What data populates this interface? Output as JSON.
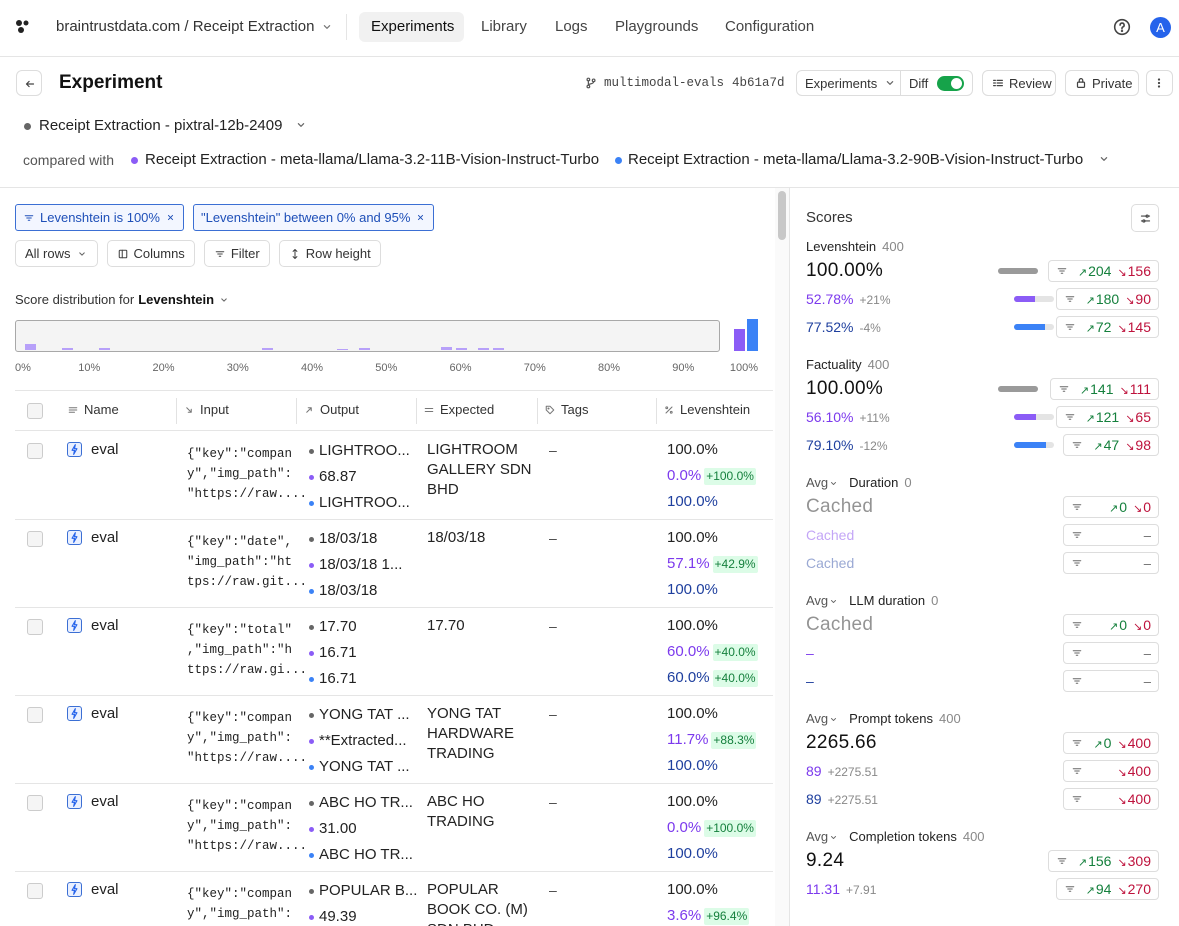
{
  "header": {
    "breadcrumb": "braintrustdata.com / Receipt Extraction",
    "nav": [
      "Experiments",
      "Library",
      "Logs",
      "Playgrounds",
      "Configuration"
    ],
    "avatar": "A"
  },
  "toolbar": {
    "title": "Experiment",
    "branch": "multimodal-evals",
    "commit": "4b61a7d",
    "buttons": [
      "Experiments",
      "Diff",
      "Review",
      "Private"
    ]
  },
  "experiment": "Receipt Extraction - pixtral-12b-2409",
  "compared_label": "compared with",
  "compared": [
    "Receipt Extraction - meta-llama/Llama-3.2-11B-Vision-Instruct-Turbo",
    "Receipt Extraction - meta-llama/Llama-3.2-90B-Vision-Instruct-Turbo"
  ],
  "filters": [
    "Levenshtein is 100%",
    "\"Levenshtein\" between 0% and 95%"
  ],
  "controls": [
    "All rows",
    "Columns",
    "Filter",
    "Row height"
  ],
  "distribution": {
    "label": "Score distribution for",
    "metric": "Levenshtein",
    "ticks": [
      "0%",
      "10%",
      "20%",
      "30%",
      "40%",
      "50%",
      "60%",
      "70%",
      "80%",
      "90%",
      "100%"
    ],
    "bars": {
      "x": [
        2,
        7,
        12,
        34,
        44,
        47,
        58,
        60,
        63,
        65
      ],
      "h": [
        6,
        2,
        2,
        2,
        1,
        2,
        3,
        2,
        2,
        2
      ]
    },
    "full": [
      22,
      32
    ]
  },
  "table": {
    "columns": [
      "Name",
      "Input",
      "Output",
      "Expected",
      "Tags",
      "Levenshtein"
    ],
    "rows": [
      {
        "name": "eval",
        "input": [
          "{\"key\":\"compan",
          "y\",\"img_path\":",
          "\"https://raw...."
        ],
        "output": [
          "LIGHTROO...",
          "68.87",
          "LIGHTROO..."
        ],
        "expected": "LIGHTROOM GALLERY SDN BHD",
        "tags": "–",
        "scores": [
          {
            "value": "100.0%"
          },
          {
            "value": "0.0%",
            "diff": "+100.0%"
          },
          {
            "value": "100.0%"
          }
        ]
      },
      {
        "name": "eval",
        "input": [
          "{\"key\":\"date\",",
          "\"img_path\":\"ht",
          "tps://raw.git..."
        ],
        "output": [
          "18/03/18",
          "18/03/18 1...",
          "18/03/18"
        ],
        "expected": "18/03/18",
        "tags": "–",
        "scores": [
          {
            "value": "100.0%"
          },
          {
            "value": "57.1%",
            "diff": "+42.9%"
          },
          {
            "value": "100.0%"
          }
        ]
      },
      {
        "name": "eval",
        "input": [
          "{\"key\":\"total\"",
          ",\"img_path\":\"h",
          "ttps://raw.gi..."
        ],
        "output": [
          "17.70",
          "16.71",
          "16.71"
        ],
        "expected": "17.70",
        "tags": "–",
        "scores": [
          {
            "value": "100.0%"
          },
          {
            "value": "60.0%",
            "diff": "+40.0%"
          },
          {
            "value": "60.0%",
            "diff": "+40.0%"
          }
        ]
      },
      {
        "name": "eval",
        "input": [
          "{\"key\":\"compan",
          "y\",\"img_path\":",
          "\"https://raw...."
        ],
        "output": [
          "YONG TAT ...",
          "**Extracted...",
          "YONG TAT ..."
        ],
        "expected": "YONG TAT HARDWARE TRADING",
        "tags": "–",
        "scores": [
          {
            "value": "100.0%"
          },
          {
            "value": "11.7%",
            "diff": "+88.3%"
          },
          {
            "value": "100.0%"
          }
        ]
      },
      {
        "name": "eval",
        "input": [
          "{\"key\":\"compan",
          "y\",\"img_path\":",
          "\"https://raw...."
        ],
        "output": [
          "ABC HO TR...",
          "31.00",
          "ABC HO TR..."
        ],
        "expected": "ABC HO TRADING",
        "tags": "–",
        "scores": [
          {
            "value": "100.0%"
          },
          {
            "value": "0.0%",
            "diff": "+100.0%"
          },
          {
            "value": "100.0%"
          }
        ]
      },
      {
        "name": "eval",
        "input": [
          "{\"key\":\"compan",
          "y\",\"img_path\":"
        ],
        "output": [
          "POPULAR B...",
          "49.39"
        ],
        "expected": "POPULAR BOOK CO. (M) SDN BHD",
        "tags": "–",
        "scores": [
          {
            "value": "100.0%"
          },
          {
            "value": "3.6%",
            "diff": "+96.4%"
          }
        ]
      }
    ]
  },
  "scores": {
    "title": "Scores",
    "sections": [
      {
        "name": "Levenshtein",
        "count": 400,
        "rows": [
          {
            "value": "100.00%",
            "up": 204,
            "down": 156
          },
          {
            "value": "52.78%",
            "delta": "+21%",
            "up": 180,
            "down": 90
          },
          {
            "value": "77.52%",
            "delta": "-4%",
            "up": 72,
            "down": 145
          }
        ]
      },
      {
        "name": "Factuality",
        "count": 400,
        "rows": [
          {
            "value": "100.00%",
            "up": 141,
            "down": 111
          },
          {
            "value": "56.10%",
            "delta": "+11%",
            "up": 121,
            "down": 65
          },
          {
            "value": "79.10%",
            "delta": "-12%",
            "up": 47,
            "down": 98
          }
        ]
      },
      {
        "agg": "Avg",
        "name": "Duration",
        "count": 0,
        "rows": [
          {
            "value": "Cached",
            "up": 0,
            "down": 0
          },
          {
            "value": "Cached",
            "empty": "–"
          },
          {
            "value": "Cached",
            "empty": "–"
          }
        ]
      },
      {
        "agg": "Avg",
        "name": "LLM duration",
        "count": 0,
        "rows": [
          {
            "value": "Cached",
            "up": 0,
            "down": 0
          },
          {
            "value": "–",
            "empty": "–"
          },
          {
            "value": "–",
            "empty": "–"
          }
        ]
      },
      {
        "agg": "Avg",
        "name": "Prompt tokens",
        "count": 400,
        "rows": [
          {
            "value": "2265.66",
            "up": 0,
            "down": 400
          },
          {
            "value": "89",
            "delta": "+2275.51",
            "down": 400
          },
          {
            "value": "89",
            "delta": "+2275.51",
            "down": 400
          }
        ]
      },
      {
        "agg": "Avg",
        "name": "Completion tokens",
        "count": 400,
        "rows": [
          {
            "value": "9.24",
            "up": 156,
            "down": 309
          },
          {
            "value": "11.31",
            "delta": "+7.91",
            "up": 94,
            "down": 270
          }
        ]
      }
    ]
  }
}
